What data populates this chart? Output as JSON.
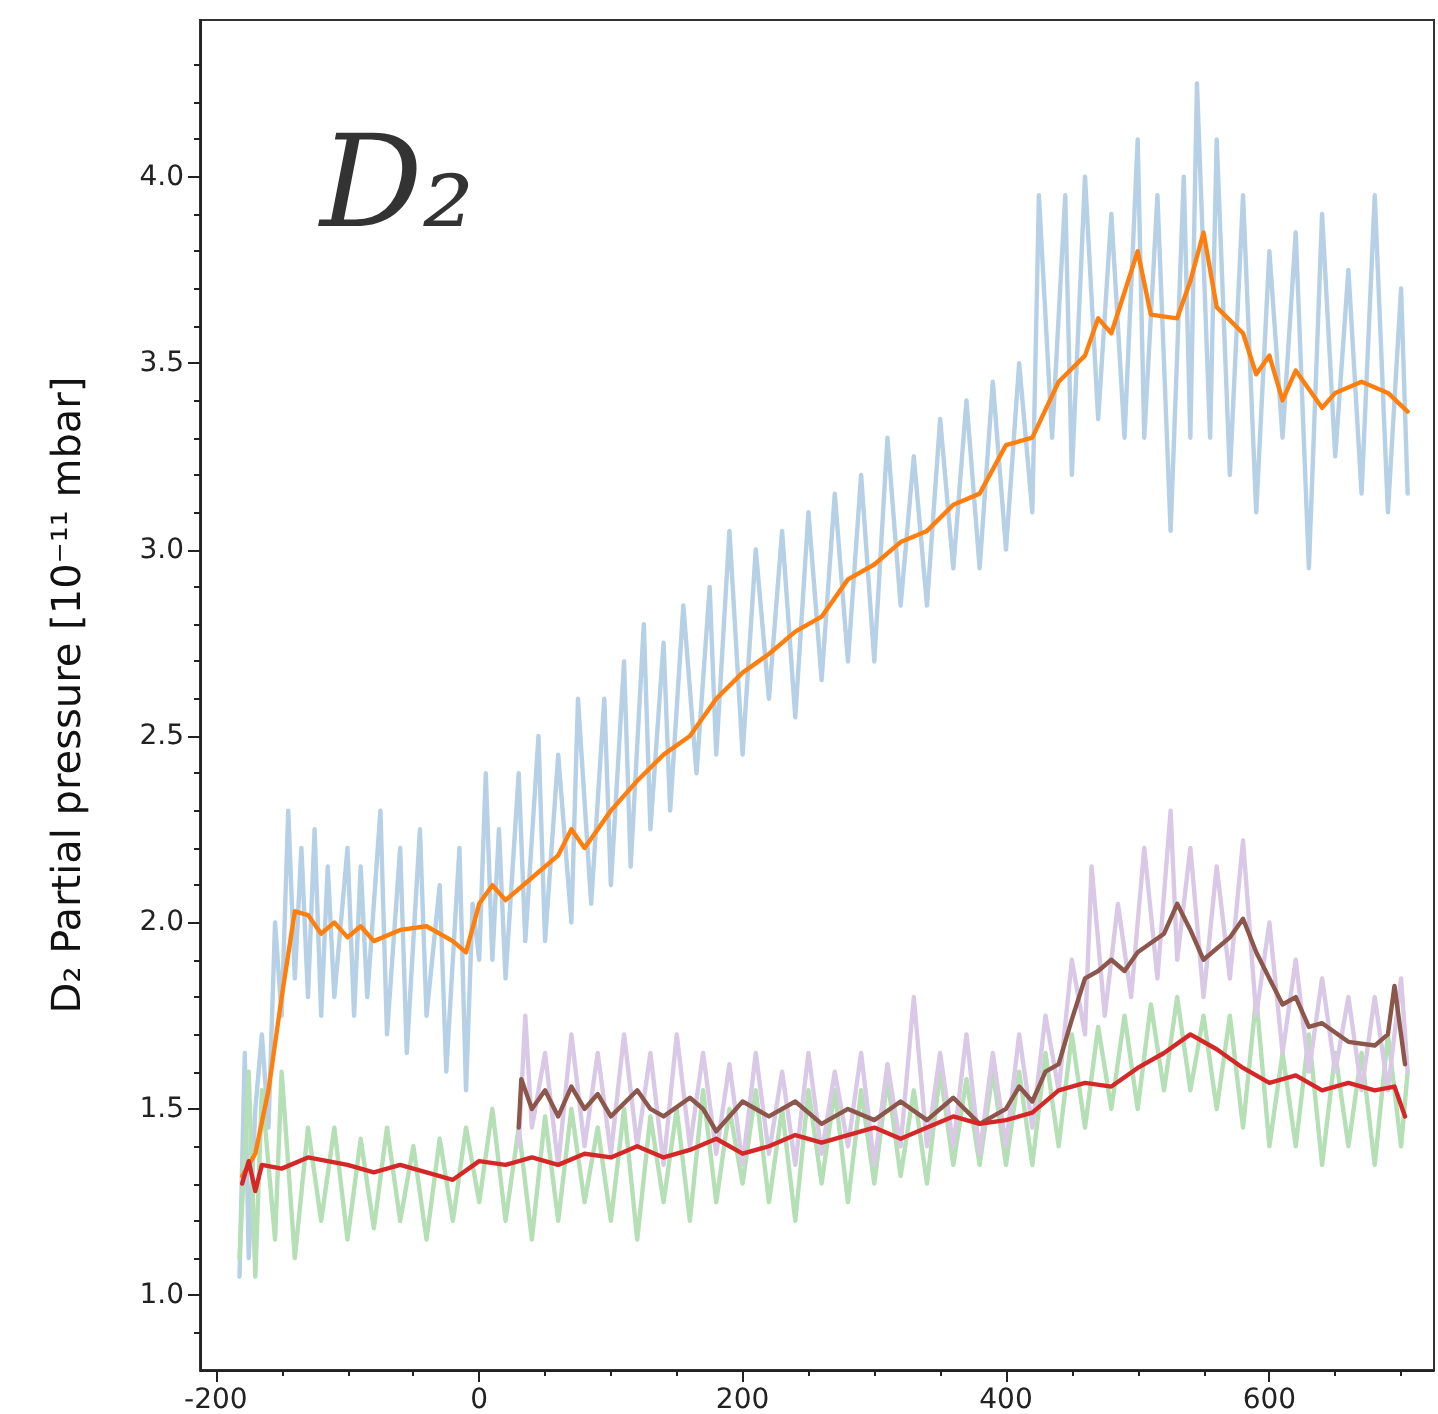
{
  "chart_data": {
    "type": "line",
    "ylabel": "D₂ Partial pressure [10⁻¹¹ mbar]",
    "annotations": [
      "D₂"
    ],
    "marker": "none",
    "line_style": "solid",
    "grid": false,
    "xlim": [
      -212,
      725
    ],
    "ylim": [
      0.8,
      4.42
    ],
    "xticks": [
      -200,
      {
        "value": -150,
        "label": null
      },
      {
        "value": -100,
        "label": null
      },
      {
        "value": -50,
        "label": null
      },
      0,
      {
        "value": 50,
        "label": null
      },
      {
        "value": 100,
        "label": null
      },
      {
        "value": 150,
        "label": null
      },
      200,
      {
        "value": 250,
        "label": null
      },
      {
        "value": 300,
        "label": null
      },
      {
        "value": 350,
        "label": null
      },
      400,
      {
        "value": 450,
        "label": null
      },
      {
        "value": 500,
        "label": null
      },
      {
        "value": 550,
        "label": null
      },
      600,
      {
        "value": 650,
        "label": null
      },
      {
        "value": 700,
        "label": null
      }
    ],
    "yticks": [
      {
        "value": 0.9,
        "label": null
      },
      {
        "value": 1,
        "label": "1.0"
      },
      {
        "value": 1.1,
        "label": null
      },
      {
        "value": 1.2,
        "label": null
      },
      {
        "value": 1.3,
        "label": null
      },
      {
        "value": 1.4,
        "label": null
      },
      {
        "value": 1.5,
        "label": "1.5"
      },
      {
        "value": 1.6,
        "label": null
      },
      {
        "value": 1.7,
        "label": null
      },
      {
        "value": 1.8,
        "label": null
      },
      {
        "value": 1.9,
        "label": null
      },
      {
        "value": 2,
        "label": "2.0"
      },
      {
        "value": 2.1,
        "label": null
      },
      {
        "value": 2.2,
        "label": null
      },
      {
        "value": 2.3,
        "label": null
      },
      {
        "value": 2.4,
        "label": null
      },
      {
        "value": 2.5,
        "label": "2.5"
      },
      {
        "value": 2.6,
        "label": null
      },
      {
        "value": 2.7,
        "label": null
      },
      {
        "value": 2.8,
        "label": null
      },
      {
        "value": 2.9,
        "label": null
      },
      {
        "value": 3,
        "label": "3.0"
      },
      {
        "value": 3.1,
        "label": null
      },
      {
        "value": 3.2,
        "label": null
      },
      {
        "value": 3.3,
        "label": null
      },
      {
        "value": 3.4,
        "label": null
      },
      {
        "value": 3.5,
        "label": "3.5"
      },
      {
        "value": 3.6,
        "label": null
      },
      {
        "value": 3.7,
        "label": null
      },
      {
        "value": 3.8,
        "label": null
      },
      {
        "value": 3.9,
        "label": null
      },
      {
        "value": 4,
        "label": "4.0"
      },
      {
        "value": 4.1,
        "label": null
      },
      {
        "value": 4.2,
        "label": null
      },
      {
        "value": 4.3,
        "label": null
      }
    ],
    "series": [
      {
        "color": "#b6d0e6",
        "x": [
          -182,
          -178,
          -175,
          -170,
          -165,
          -160,
          -155,
          -150,
          -145,
          -140,
          -135,
          -130,
          -125,
          -120,
          -115,
          -110,
          -100,
          -95,
          -90,
          -85,
          -75,
          -70,
          -60,
          -55,
          -45,
          -40,
          -30,
          -25,
          -15,
          -10,
          -5,
          0,
          5,
          10,
          15,
          20,
          30,
          35,
          45,
          50,
          60,
          70,
          75,
          85,
          95,
          100,
          110,
          115,
          125,
          130,
          140,
          145,
          155,
          165,
          175,
          180,
          190,
          200,
          210,
          220,
          230,
          240,
          250,
          260,
          270,
          280,
          290,
          300,
          310,
          320,
          330,
          340,
          350,
          360,
          370,
          380,
          390,
          400,
          410,
          420,
          425,
          435,
          445,
          450,
          460,
          470,
          480,
          490,
          500,
          505,
          515,
          525,
          535,
          540,
          545,
          555,
          560,
          570,
          580,
          590,
          600,
          610,
          620,
          630,
          640,
          650,
          660,
          670,
          680,
          690,
          700,
          705
        ],
        "values": [
          1.05,
          1.65,
          1.1,
          1.5,
          1.7,
          1.45,
          2.0,
          1.75,
          2.3,
          1.85,
          2.2,
          1.8,
          2.25,
          1.75,
          2.15,
          1.8,
          2.2,
          1.75,
          2.15,
          1.8,
          2.3,
          1.7,
          2.2,
          1.65,
          2.25,
          1.75,
          2.1,
          1.6,
          2.2,
          1.55,
          2.05,
          1.9,
          2.4,
          1.9,
          2.25,
          1.85,
          2.4,
          1.95,
          2.5,
          1.95,
          2.45,
          2.0,
          2.6,
          2.05,
          2.6,
          2.1,
          2.7,
          2.15,
          2.8,
          2.25,
          2.75,
          2.3,
          2.85,
          2.4,
          2.9,
          2.45,
          3.05,
          2.45,
          3.0,
          2.6,
          3.05,
          2.55,
          3.1,
          2.65,
          3.15,
          2.7,
          3.2,
          2.7,
          3.3,
          2.85,
          3.25,
          2.85,
          3.35,
          2.95,
          3.4,
          2.95,
          3.45,
          3.0,
          3.5,
          3.1,
          3.95,
          3.3,
          3.95,
          3.2,
          4.0,
          3.35,
          3.9,
          3.3,
          4.1,
          3.3,
          3.95,
          3.05,
          4.0,
          3.3,
          4.25,
          3.3,
          4.1,
          3.2,
          3.95,
          3.1,
          3.8,
          3.3,
          3.85,
          2.95,
          3.9,
          3.25,
          3.75,
          3.15,
          3.95,
          3.1,
          3.7,
          3.15
        ]
      },
      {
        "color": "#b5dfb5",
        "x": [
          -182,
          -175,
          -170,
          -165,
          -155,
          -150,
          -140,
          -130,
          -120,
          -110,
          -100,
          -90,
          -80,
          -70,
          -60,
          -50,
          -40,
          -30,
          -20,
          -10,
          0,
          10,
          20,
          30,
          40,
          50,
          60,
          70,
          80,
          90,
          100,
          110,
          120,
          130,
          140,
          150,
          160,
          170,
          180,
          190,
          200,
          210,
          220,
          230,
          240,
          250,
          260,
          270,
          280,
          290,
          300,
          310,
          320,
          330,
          340,
          350,
          360,
          370,
          380,
          390,
          400,
          410,
          420,
          430,
          440,
          450,
          460,
          470,
          480,
          490,
          500,
          510,
          520,
          530,
          540,
          550,
          560,
          570,
          580,
          590,
          600,
          610,
          620,
          630,
          640,
          650,
          660,
          670,
          680,
          690,
          700,
          705
        ],
        "values": [
          1.1,
          1.6,
          1.05,
          1.55,
          1.15,
          1.6,
          1.1,
          1.45,
          1.2,
          1.45,
          1.15,
          1.42,
          1.18,
          1.45,
          1.2,
          1.4,
          1.15,
          1.42,
          1.2,
          1.45,
          1.25,
          1.5,
          1.2,
          1.45,
          1.15,
          1.48,
          1.2,
          1.5,
          1.25,
          1.45,
          1.2,
          1.5,
          1.15,
          1.48,
          1.25,
          1.5,
          1.2,
          1.55,
          1.25,
          1.5,
          1.3,
          1.55,
          1.25,
          1.5,
          1.2,
          1.55,
          1.3,
          1.55,
          1.25,
          1.55,
          1.3,
          1.58,
          1.32,
          1.55,
          1.3,
          1.6,
          1.35,
          1.58,
          1.35,
          1.6,
          1.35,
          1.6,
          1.35,
          1.65,
          1.4,
          1.7,
          1.45,
          1.72,
          1.5,
          1.75,
          1.5,
          1.78,
          1.55,
          1.8,
          1.55,
          1.75,
          1.5,
          1.75,
          1.45,
          1.8,
          1.4,
          1.65,
          1.4,
          1.7,
          1.35,
          1.65,
          1.4,
          1.65,
          1.35,
          1.7,
          1.4,
          1.6
        ]
      },
      {
        "color": "#d9c9e6",
        "x": [
          30,
          35,
          40,
          50,
          60,
          70,
          80,
          90,
          100,
          110,
          120,
          130,
          140,
          150,
          160,
          170,
          180,
          190,
          200,
          210,
          220,
          230,
          240,
          250,
          260,
          270,
          280,
          290,
          300,
          310,
          320,
          330,
          340,
          350,
          360,
          370,
          380,
          390,
          400,
          410,
          420,
          430,
          440,
          450,
          460,
          465,
          475,
          485,
          495,
          505,
          515,
          525,
          530,
          540,
          550,
          560,
          570,
          580,
          590,
          600,
          610,
          620,
          630,
          640,
          650,
          660,
          670,
          680,
          690,
          700,
          705
        ],
        "values": [
          1.4,
          1.75,
          1.45,
          1.65,
          1.35,
          1.7,
          1.4,
          1.65,
          1.38,
          1.7,
          1.4,
          1.65,
          1.35,
          1.7,
          1.4,
          1.65,
          1.38,
          1.62,
          1.35,
          1.65,
          1.38,
          1.6,
          1.35,
          1.65,
          1.38,
          1.6,
          1.4,
          1.65,
          1.35,
          1.62,
          1.4,
          1.8,
          1.4,
          1.65,
          1.4,
          1.7,
          1.38,
          1.65,
          1.4,
          1.7,
          1.45,
          1.75,
          1.55,
          1.9,
          1.7,
          2.15,
          1.75,
          2.05,
          1.8,
          2.2,
          1.85,
          2.3,
          1.9,
          2.2,
          1.8,
          2.15,
          1.85,
          2.22,
          1.75,
          2.0,
          1.65,
          1.9,
          1.6,
          1.85,
          1.6,
          1.8,
          1.55,
          1.8,
          1.55,
          1.85,
          1.6
        ]
      },
      {
        "color": "#ff7f0e",
        "x": [
          -180,
          -170,
          -160,
          -150,
          -140,
          -130,
          -120,
          -110,
          -100,
          -90,
          -80,
          -60,
          -40,
          -20,
          -10,
          0,
          10,
          20,
          40,
          60,
          70,
          80,
          100,
          120,
          140,
          160,
          180,
          200,
          220,
          240,
          260,
          280,
          300,
          320,
          340,
          360,
          380,
          400,
          420,
          440,
          460,
          470,
          480,
          500,
          510,
          530,
          540,
          550,
          560,
          580,
          590,
          600,
          610,
          620,
          640,
          650,
          670,
          690,
          705
        ],
        "values": [
          1.32,
          1.38,
          1.55,
          1.8,
          2.03,
          2.02,
          1.97,
          2.0,
          1.96,
          1.99,
          1.95,
          1.98,
          1.99,
          1.95,
          1.92,
          2.05,
          2.1,
          2.06,
          2.12,
          2.18,
          2.25,
          2.2,
          2.3,
          2.38,
          2.45,
          2.5,
          2.6,
          2.67,
          2.72,
          2.78,
          2.82,
          2.92,
          2.96,
          3.02,
          3.05,
          3.12,
          3.15,
          3.28,
          3.3,
          3.45,
          3.52,
          3.62,
          3.58,
          3.8,
          3.63,
          3.62,
          3.72,
          3.85,
          3.65,
          3.58,
          3.47,
          3.52,
          3.4,
          3.48,
          3.38,
          3.42,
          3.45,
          3.42,
          3.37
        ]
      },
      {
        "color": "#8c564b",
        "x": [
          30,
          32,
          40,
          50,
          60,
          70,
          80,
          90,
          100,
          120,
          130,
          140,
          160,
          170,
          180,
          200,
          220,
          240,
          260,
          280,
          300,
          320,
          340,
          360,
          380,
          400,
          410,
          420,
          430,
          440,
          450,
          460,
          470,
          480,
          490,
          500,
          520,
          530,
          540,
          550,
          570,
          580,
          590,
          600,
          610,
          620,
          630,
          640,
          660,
          680,
          690,
          695,
          703
        ],
        "values": [
          1.45,
          1.58,
          1.5,
          1.55,
          1.48,
          1.56,
          1.5,
          1.54,
          1.48,
          1.55,
          1.5,
          1.48,
          1.53,
          1.5,
          1.44,
          1.52,
          1.48,
          1.52,
          1.46,
          1.5,
          1.47,
          1.52,
          1.47,
          1.53,
          1.46,
          1.5,
          1.56,
          1.52,
          1.6,
          1.62,
          1.74,
          1.85,
          1.87,
          1.9,
          1.87,
          1.92,
          1.97,
          2.05,
          1.98,
          1.9,
          1.96,
          2.01,
          1.92,
          1.85,
          1.78,
          1.8,
          1.72,
          1.73,
          1.68,
          1.67,
          1.7,
          1.83,
          1.62
        ]
      },
      {
        "color": "#d62728",
        "x": [
          -180,
          -175,
          -170,
          -165,
          -150,
          -130,
          -100,
          -80,
          -60,
          -40,
          -20,
          0,
          20,
          40,
          60,
          80,
          100,
          120,
          140,
          160,
          180,
          200,
          220,
          240,
          260,
          280,
          300,
          320,
          340,
          360,
          380,
          400,
          420,
          440,
          460,
          480,
          500,
          520,
          540,
          560,
          580,
          600,
          620,
          640,
          660,
          680,
          695,
          703
        ],
        "values": [
          1.3,
          1.36,
          1.28,
          1.35,
          1.34,
          1.37,
          1.35,
          1.33,
          1.35,
          1.33,
          1.31,
          1.36,
          1.35,
          1.37,
          1.35,
          1.38,
          1.37,
          1.4,
          1.37,
          1.39,
          1.42,
          1.38,
          1.4,
          1.43,
          1.41,
          1.43,
          1.45,
          1.42,
          1.45,
          1.48,
          1.46,
          1.47,
          1.49,
          1.55,
          1.57,
          1.56,
          1.61,
          1.65,
          1.7,
          1.66,
          1.61,
          1.57,
          1.59,
          1.55,
          1.57,
          1.55,
          1.56,
          1.48
        ]
      }
    ]
  }
}
